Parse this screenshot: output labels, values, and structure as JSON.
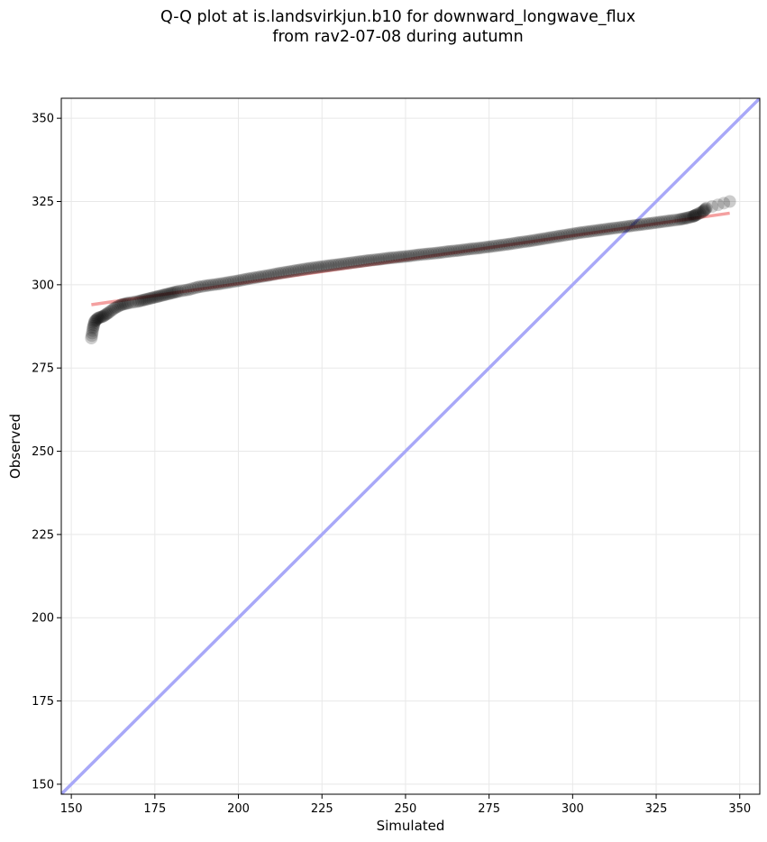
{
  "chart_data": {
    "type": "scatter",
    "title_line1": "Q-Q plot at is.landsvirkjun.b10 for downward_longwave_flux",
    "title_line2": "from rav2-07-08 during autumn",
    "xlabel": "Simulated",
    "ylabel": "Observed",
    "xlim": [
      147,
      356
    ],
    "ylim": [
      147,
      356
    ],
    "xticks": [
      150,
      175,
      200,
      225,
      250,
      275,
      300,
      325,
      350
    ],
    "yticks": [
      150,
      175,
      200,
      225,
      250,
      275,
      300,
      325,
      350
    ],
    "grid": true,
    "quantile_points": {
      "x": [
        156,
        156.5,
        157,
        158,
        159.5,
        161,
        163,
        165,
        167,
        170,
        172,
        174,
        176,
        178,
        180,
        182,
        185,
        188,
        191,
        194,
        197,
        200,
        203,
        206,
        209,
        212,
        215,
        218,
        221,
        224,
        227,
        230,
        233,
        236,
        239,
        242,
        245,
        248,
        251,
        254,
        257,
        260,
        263,
        266,
        269,
        272,
        275,
        278,
        281,
        284,
        287,
        290,
        293,
        296,
        299,
        302,
        305,
        308,
        311,
        314,
        317,
        320,
        323,
        326,
        329,
        332,
        334,
        336,
        337,
        339,
        340,
        347
      ],
      "y": [
        284,
        287,
        289,
        290,
        290.5,
        291.5,
        293,
        294,
        294.5,
        295,
        295.5,
        296,
        296.5,
        297,
        297.5,
        298,
        298.5,
        299.3,
        299.8,
        300.2,
        300.7,
        301.2,
        301.8,
        302.3,
        302.8,
        303.4,
        303.9,
        304.4,
        304.9,
        305.3,
        305.7,
        306.1,
        306.5,
        306.9,
        307.3,
        307.6,
        308,
        308.3,
        308.6,
        309,
        309.3,
        309.6,
        310,
        310.3,
        310.7,
        311,
        311.4,
        311.8,
        312.2,
        312.7,
        313.1,
        313.6,
        314.1,
        314.6,
        315.1,
        315.6,
        316,
        316.4,
        316.8,
        317.2,
        317.6,
        318,
        318.4,
        318.8,
        319.2,
        319.6,
        320,
        320.5,
        321,
        322,
        323,
        325
      ]
    },
    "fit_line": {
      "x": [
        156,
        347
      ],
      "y": [
        294,
        321.5
      ]
    },
    "identity_line": {
      "x": [
        147,
        356
      ],
      "y": [
        147,
        356
      ]
    },
    "colors": {
      "points": "#000000",
      "fit_line": "#f08080",
      "identity_line": "#a8a8f8",
      "grid": "#e8e8e8"
    }
  }
}
